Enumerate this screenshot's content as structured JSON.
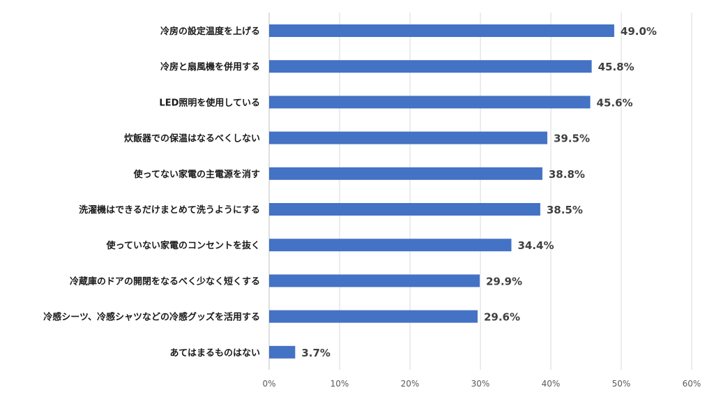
{
  "chart_data": {
    "type": "bar",
    "orientation": "horizontal",
    "categories": [
      "冷房の設定温度を上げる",
      "冷房と扇風機を併用する",
      "LED照明を使用している",
      "炊飯器での保温はなるべくしない",
      "使ってない家電の主電源を消す",
      "洗濯機はできるだけまとめて洗うようにする",
      "使っていない家電のコンセントを抜く",
      "冷蔵庫のドアの開閉をなるべく少なく短くする",
      "冷感シーツ、冷感シャツなどの冷感グッズを活用する",
      "あてはまるものはない"
    ],
    "values": [
      49.0,
      45.8,
      45.6,
      39.5,
      38.8,
      38.5,
      34.4,
      29.9,
      29.6,
      3.7
    ],
    "data_labels": [
      "49.0%",
      "45.8%",
      "45.6%",
      "39.5%",
      "38.8%",
      "38.5%",
      "34.4%",
      "29.9%",
      "29.6%",
      "3.7%"
    ],
    "title": "",
    "xlabel": "",
    "ylabel": "",
    "xlim": [
      0,
      60
    ],
    "ticks": [
      0,
      10,
      20,
      30,
      40,
      50,
      60
    ],
    "tick_labels": [
      "0%",
      "10%",
      "20%",
      "30%",
      "40%",
      "50%",
      "60%"
    ],
    "grid": "vertical",
    "legend": "none",
    "bar_color": "#4472c4"
  }
}
